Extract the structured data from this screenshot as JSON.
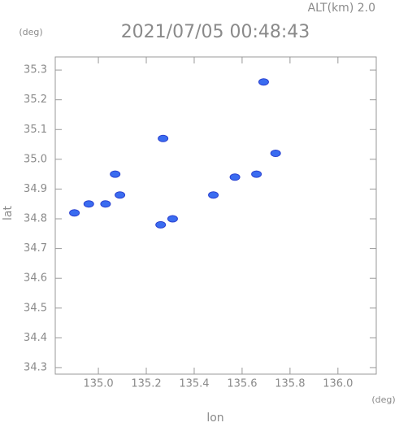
{
  "chart_data": {
    "type": "scatter",
    "title": "2021/07/05 00:48:43",
    "subtitle": "ALT(km) 2.0",
    "x_unit": "(deg)",
    "y_unit": "(deg)",
    "x_label": "lon",
    "y_label": "lat",
    "xlim": [
      134.82,
      136.16
    ],
    "ylim": [
      34.278,
      35.344
    ],
    "xticks": [
      {
        "value": 135,
        "label": "135.0"
      },
      135.2,
      135.4,
      135.6,
      135.8,
      {
        "value": 136,
        "label": "136.0"
      }
    ],
    "yticks": [
      34.3,
      34.4,
      34.5,
      34.6,
      34.7,
      34.8,
      34.9,
      {
        "value": 35,
        "label": "35.0"
      },
      35.1,
      35.2,
      35.3
    ],
    "color": "#3a6cf0",
    "x": [
      135.69,
      135.27,
      135.74,
      135.66,
      135.57,
      135.48,
      135.31,
      135.26,
      135.07,
      135.09,
      135.03,
      134.96,
      134.9
    ],
    "values": [
      35.26,
      35.07,
      35.02,
      34.95,
      34.94,
      34.88,
      34.8,
      34.78,
      34.95,
      34.88,
      34.85,
      34.85,
      34.82
    ]
  }
}
